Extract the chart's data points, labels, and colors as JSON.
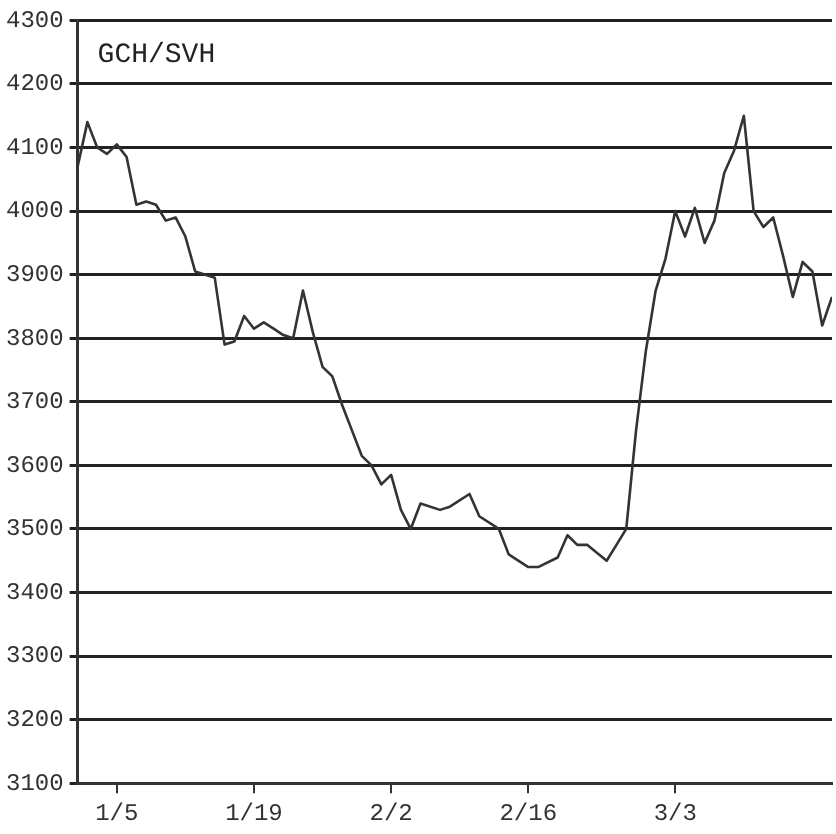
{
  "chart_data": {
    "type": "line",
    "title": "GCH/SVH",
    "x": [
      "--01-01",
      "--01-02",
      "--01-03",
      "--01-04",
      "--01-05",
      "--01-06",
      "--01-07",
      "--01-08",
      "--01-09",
      "--01-10",
      "--01-11",
      "--01-12",
      "--01-13",
      "--01-15",
      "--01-16",
      "--01-17",
      "--01-18",
      "--01-19",
      "--01-20",
      "--01-21",
      "--01-22",
      "--01-23",
      "--01-24",
      "--01-25",
      "--01-26",
      "--01-27",
      "--01-28",
      "--01-29",
      "--01-30",
      "--01-31",
      "--02-01",
      "--02-02",
      "--02-03",
      "--02-04",
      "--02-05",
      "--02-07",
      "--02-08",
      "--02-10",
      "--02-11",
      "--02-13",
      "--02-14",
      "--02-16",
      "--02-17",
      "--02-19",
      "--02-20",
      "--02-21",
      "--02-22",
      "--02-24",
      "--02-25",
      "--02-26",
      "--02-27",
      "--02-28",
      "--03-01",
      "--03-02",
      "--03-03",
      "--03-04",
      "--03-05",
      "--03-06",
      "--03-07",
      "--03-08",
      "--03-09",
      "--03-10",
      "--03-11",
      "--03-12",
      "--03-13",
      "--03-14",
      "--03-15",
      "--03-16",
      "--03-17",
      "--03-18",
      "--03-19"
    ],
    "series": [
      {
        "color": "#333333",
        "values": [
          4070,
          4140,
          4100,
          4090,
          4105,
          4085,
          4010,
          4015,
          4010,
          3985,
          3990,
          3960,
          3905,
          3895,
          3790,
          3795,
          3835,
          3815,
          3825,
          3815,
          3805,
          3800,
          3875,
          3810,
          3755,
          3740,
          3695,
          3655,
          3615,
          3600,
          3570,
          3585,
          3530,
          3500,
          3540,
          3530,
          3535,
          3555,
          3520,
          3500,
          3460,
          3440,
          3440,
          3455,
          3490,
          3475,
          3475,
          3450,
          3475,
          3500,
          3655,
          3780,
          3875,
          3925,
          4000,
          3960,
          4005,
          3950,
          3985,
          4060,
          4095,
          4150,
          4000,
          3975,
          3990,
          3930,
          3865,
          3920,
          3905,
          3820,
          3865
        ]
      }
    ],
    "xlim": [
      "--01-01",
      "--03-19"
    ],
    "xticks": [
      {
        "value": "--01-05",
        "label": "1/5"
      },
      {
        "value": "--01-19",
        "label": "1/19"
      },
      {
        "value": "--02-02",
        "label": "2/2"
      },
      {
        "value": "--02-16",
        "label": "2/16"
      },
      {
        "value": "--03-03",
        "label": "3/3"
      }
    ],
    "ylim": [
      3100,
      4300
    ],
    "yticks": [
      3100,
      3200,
      3300,
      3400,
      3500,
      3600,
      3700,
      3800,
      3900,
      4000,
      4100,
      4200,
      4300
    ],
    "grid": "y",
    "marker": "none",
    "line_style": "solid"
  }
}
